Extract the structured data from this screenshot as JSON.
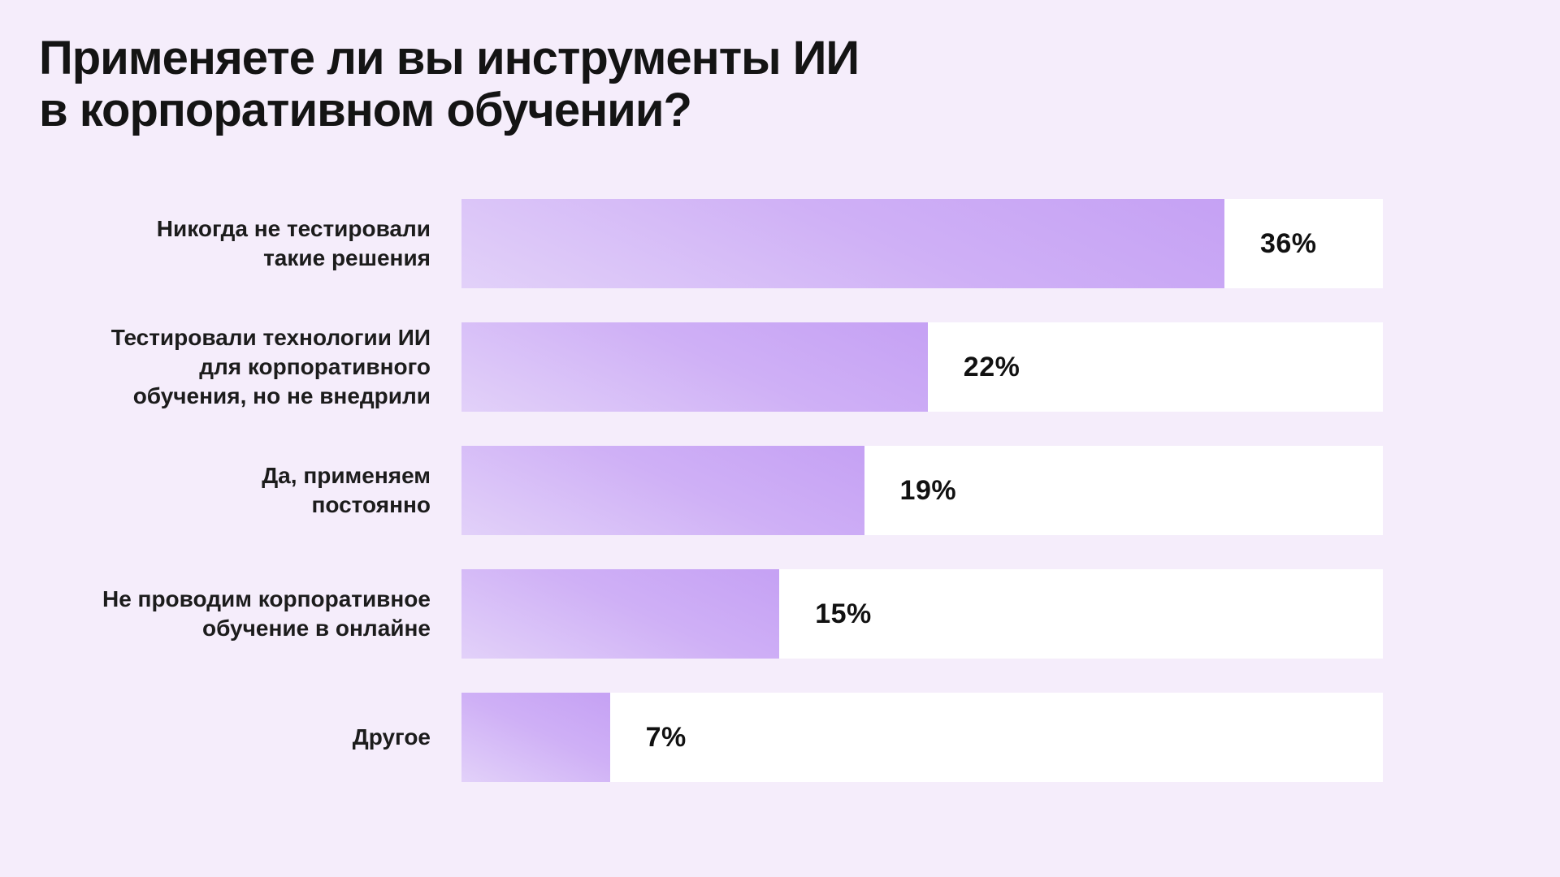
{
  "page": {
    "background_color": "#f5edfb",
    "track_color": "#ffffff",
    "bar_gradient_top": "#c5a1f4",
    "bar_gradient_bottom": "#e2d1f9",
    "text_color": "#141414"
  },
  "title": {
    "line1": "Применяете ли вы инструменты ИИ",
    "line2": "в корпоративном обучении?"
  },
  "chart_data": {
    "type": "bar",
    "orientation": "horizontal",
    "title": "Применяете ли вы инструменты ИИ в корпоративном обучении?",
    "xlabel": "",
    "ylabel": "",
    "xlim": [
      0,
      43.5
    ],
    "grid": false,
    "legend": "none",
    "percent_per_track_fraction": 2.3,
    "categories": [
      "Никогда не тестировали такие решения",
      "Тестировали технологии ИИ для корпоративного обучения, но не внедрили",
      "Да, применяем постоянно",
      "Не проводим корпоративное обучение в онлайне",
      "Другое"
    ],
    "values": [
      36,
      22,
      19,
      15,
      7
    ],
    "items": [
      {
        "label_lines": [
          "Никогда не тестировали",
          "такие решения"
        ],
        "value": 36,
        "value_label": "36%"
      },
      {
        "label_lines": [
          "Тестировали технологии ИИ",
          "для корпоративного",
          "обучения, но не внедрили"
        ],
        "value": 22,
        "value_label": "22%"
      },
      {
        "label_lines": [
          "Да, применяем",
          "постоянно"
        ],
        "value": 19,
        "value_label": "19%"
      },
      {
        "label_lines": [
          "Не проводим корпоративное",
          "обучение в онлайне"
        ],
        "value": 15,
        "value_label": "15%"
      },
      {
        "label_lines": [
          "Другое"
        ],
        "value": 7,
        "value_label": "7%"
      }
    ]
  }
}
